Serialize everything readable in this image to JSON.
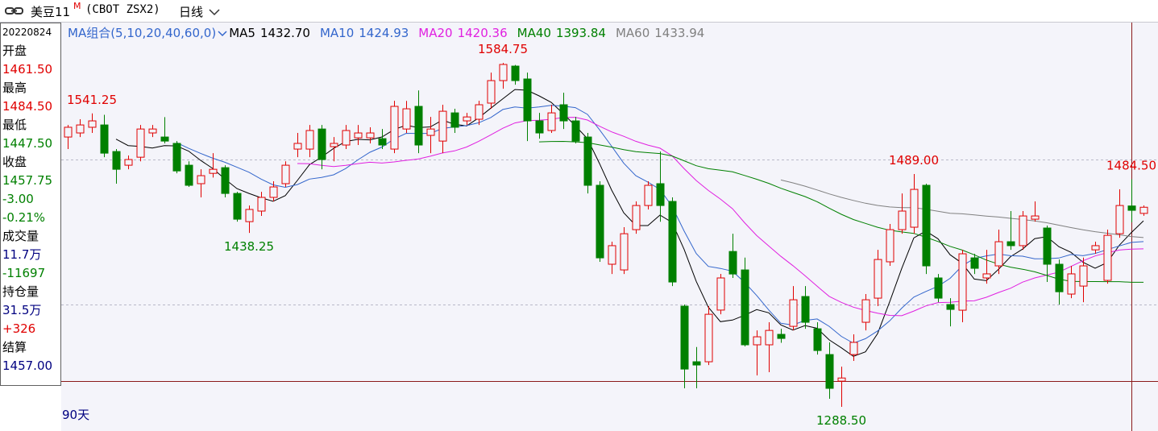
{
  "header": {
    "symbol": "美豆11",
    "superscript": "M",
    "code": "(CBOT ZSX2)",
    "period": "日线"
  },
  "info_panel": {
    "lines": [
      {
        "text": "20220824",
        "color": "#000000"
      },
      {
        "text": "开盘",
        "color": "#000000"
      },
      {
        "text": "1461.50",
        "color": "#e00000"
      },
      {
        "text": "最高",
        "color": "#000000"
      },
      {
        "text": "1484.50",
        "color": "#e00000"
      },
      {
        "text": "最低",
        "color": "#000000"
      },
      {
        "text": "1447.50",
        "color": "#008000"
      },
      {
        "text": "收盘",
        "color": "#000000"
      },
      {
        "text": "1457.75",
        "color": "#008000"
      },
      {
        "text": "-3.00",
        "color": "#008000"
      },
      {
        "text": "-0.21%",
        "color": "#008000"
      },
      {
        "text": "成交量",
        "color": "#000000"
      },
      {
        "text": "11.7万",
        "color": "#000080"
      },
      {
        "text": "-11697",
        "color": "#008000"
      },
      {
        "text": "持仓量",
        "color": "#000000"
      },
      {
        "text": "31.5万",
        "color": "#000080"
      },
      {
        "text": "+326",
        "color": "#e00000"
      },
      {
        "text": "结算",
        "color": "#000000"
      },
      {
        "text": "1457.00",
        "color": "#000080"
      }
    ]
  },
  "chart_data": {
    "type": "candlestick",
    "ma_legend": {
      "title": "MA组合(5,10,20,40,60,0)",
      "items": [
        {
          "name": "MA5",
          "value": "1432.70",
          "color": "#000000",
          "period": 5
        },
        {
          "name": "MA10",
          "value": "1424.93",
          "color": "#3366cc",
          "period": 10
        },
        {
          "name": "MA20",
          "value": "1420.36",
          "color": "#e020e0",
          "period": 20
        },
        {
          "name": "MA40",
          "value": "1393.84",
          "color": "#008000",
          "period": 40
        },
        {
          "name": "MA60",
          "value": "1433.94",
          "color": "#808080",
          "period": 60
        }
      ]
    },
    "up_color": "#e00000",
    "down_color": "#008000",
    "label_up_color": "#e00000",
    "label_down_color": "#008000",
    "range_label": "90天",
    "ylim": [
      1272.5,
      1619.5
    ],
    "open": [
      1520.9,
      1524.4,
      1529.3,
      1531.3,
      1508.4,
      1496.6,
      1503.5,
      1524.4,
      1520.9,
      1515.4,
      1496.6,
      1480.7,
      1489.6,
      1494.5,
      1472.3,
      1448,
      1457.1,
      1468.9,
      1480.7,
      1510.5,
      1510.5,
      1527.8,
      1512.6,
      1514,
      1520.2,
      1520.2,
      1519.5,
      1510.5,
      1527.8,
      1547.3,
      1522.3,
      1517.4,
      1541.7,
      1534.8,
      1536.2,
      1550.1,
      1569.5,
      1582,
      1570.9,
      1534.8,
      1526.5,
      1548.7,
      1534.8,
      1520.9,
      1479.3,
      1411.3,
      1406.4,
      1441.1,
      1461.9,
      1480.7,
      1465.4,
      1375.2,
      1327.3,
      1327.3,
      1371.8,
      1422.3,
      1406.4,
      1341.9,
      1341.9,
      1350.9,
      1357.8,
      1383.5,
      1355.7,
      1333.5,
      1310.6,
      1333.5,
      1361.3,
      1382.1,
      1413.4,
      1441.1,
      1443.2,
      1479.3,
      1399.5,
      1376.6,
      1371.7,
      1416.8,
      1399.5,
      1409.9,
      1430.7,
      1427.3,
      1450.1,
      1442.5,
      1411.3,
      1385.6,
      1392.5,
      1423.7,
      1397.4,
      1437.6,
      1461.5,
      1455.1
    ],
    "high": [
      1531.3,
      1536.2,
      1541.25,
      1540,
      1510.5,
      1505,
      1531.3,
      1531.3,
      1538,
      1517.4,
      1500,
      1493.1,
      1507,
      1496.6,
      1473.7,
      1461.9,
      1473.7,
      1482.8,
      1500,
      1524.4,
      1531.3,
      1531.3,
      1520.9,
      1531.3,
      1531.3,
      1529.3,
      1527.8,
      1552.1,
      1552,
      1561,
      1538.2,
      1548.7,
      1545.2,
      1541.7,
      1552.1,
      1576.4,
      1584.75,
      1583,
      1576.4,
      1541.7,
      1548.7,
      1559,
      1538.2,
      1524.4,
      1482.8,
      1430.7,
      1443.2,
      1465.4,
      1482.8,
      1508.4,
      1468.9,
      1376.6,
      1340,
      1375.2,
      1403,
      1437.6,
      1417,
      1354.3,
      1361.3,
      1355.7,
      1392.5,
      1392.5,
      1361.3,
      1344,
      1323.1,
      1350.9,
      1385.6,
      1423.7,
      1446,
      1472.3,
      1489,
      1480.7,
      1402.9,
      1382.1,
      1423.7,
      1420.3,
      1423.7,
      1441.1,
      1457.1,
      1457.1,
      1465.4,
      1444.6,
      1415.4,
      1409.9,
      1417,
      1430.7,
      1441.1,
      1475.8,
      1484.5,
      1462
    ],
    "low": [
      1510.5,
      1520.9,
      1524.4,
      1503.5,
      1480.7,
      1493.1,
      1500,
      1520.9,
      1515.4,
      1489.6,
      1477.9,
      1468.9,
      1486,
      1468.9,
      1448,
      1438.25,
      1452.9,
      1465.4,
      1477.9,
      1503.5,
      1503.5,
      1493.1,
      1500,
      1510.5,
      1514,
      1515.4,
      1510.5,
      1507,
      1524.4,
      1507,
      1507,
      1507,
      1524.4,
      1531.3,
      1531.3,
      1545.2,
      1562.5,
      1566,
      1517.4,
      1519.5,
      1524.4,
      1527.8,
      1515.4,
      1472.3,
      1413.4,
      1402.9,
      1402.9,
      1437.6,
      1458.5,
      1447.9,
      1392.5,
      1304.4,
      1304.4,
      1324.5,
      1368.2,
      1399.5,
      1340.5,
      1315.5,
      1318.3,
      1343.6,
      1354.3,
      1355.7,
      1333.5,
      1295.4,
      1288.5,
      1328,
      1354.3,
      1375.2,
      1409.9,
      1437.6,
      1437.6,
      1402.9,
      1378.6,
      1357.8,
      1361.3,
      1402.9,
      1394.6,
      1402.9,
      1423.7,
      1423.7,
      1448,
      1396,
      1376.6,
      1382.1,
      1378.6,
      1420.3,
      1394.6,
      1434.1,
      1447.5,
      1453
    ],
    "close": [
      1529.3,
      1531.3,
      1534.8,
      1507,
      1493.1,
      1501.5,
      1527.8,
      1527.8,
      1517.4,
      1491.7,
      1479.3,
      1487.6,
      1493.1,
      1472.3,
      1450.1,
      1458.5,
      1468.9,
      1477.9,
      1496.6,
      1515.4,
      1526.5,
      1501.5,
      1515.4,
      1526.5,
      1524.4,
      1524.4,
      1514,
      1547.3,
      1545.2,
      1514,
      1527.8,
      1543.1,
      1529.3,
      1538.2,
      1548.7,
      1569.5,
      1583.4,
      1569.5,
      1534.8,
      1524.4,
      1541.7,
      1534.8,
      1517.4,
      1479.3,
      1416.8,
      1427.3,
      1437.6,
      1461.9,
      1479.3,
      1461.9,
      1396,
      1321,
      1324.5,
      1368.2,
      1399.5,
      1402.9,
      1341.9,
      1348.8,
      1354.3,
      1347.4,
      1380.7,
      1361.3,
      1337,
      1304.4,
      1313.3,
      1344,
      1380.7,
      1415.4,
      1441.1,
      1457.1,
      1475.8,
      1409.9,
      1382.1,
      1372.4,
      1420.3,
      1407.8,
      1403,
      1430.7,
      1427.3,
      1452.9,
      1452.9,
      1411.3,
      1387.6,
      1403,
      1409.9,
      1427.3,
      1436.2,
      1461.9,
      1457.75,
      1460.4
    ],
    "high_labels": [
      null,
      null,
      "1541.25",
      null,
      null,
      null,
      null,
      null,
      null,
      null,
      null,
      null,
      null,
      null,
      null,
      null,
      null,
      null,
      null,
      null,
      null,
      null,
      null,
      null,
      null,
      null,
      null,
      null,
      null,
      null,
      null,
      null,
      null,
      null,
      null,
      null,
      "1584.75",
      null,
      null,
      null,
      null,
      null,
      null,
      null,
      null,
      null,
      null,
      null,
      null,
      null,
      null,
      null,
      null,
      null,
      null,
      null,
      null,
      null,
      null,
      null,
      null,
      null,
      null,
      null,
      null,
      null,
      null,
      null,
      null,
      null,
      "1489.00",
      null,
      null,
      null,
      null,
      null,
      null,
      null,
      null,
      null,
      null,
      null,
      null,
      null,
      null,
      null,
      null,
      null,
      "1484.50",
      null
    ],
    "low_labels": [
      null,
      null,
      null,
      null,
      null,
      null,
      null,
      null,
      null,
      null,
      null,
      null,
      null,
      null,
      null,
      "1438.25",
      null,
      null,
      null,
      null,
      null,
      null,
      null,
      null,
      null,
      null,
      null,
      null,
      null,
      null,
      null,
      null,
      null,
      null,
      null,
      null,
      null,
      null,
      null,
      null,
      null,
      null,
      null,
      null,
      null,
      null,
      null,
      null,
      null,
      null,
      null,
      null,
      null,
      null,
      null,
      null,
      null,
      null,
      null,
      null,
      null,
      null,
      null,
      null,
      "1288.50",
      null,
      null,
      null,
      null,
      null,
      null,
      null,
      null,
      null,
      null,
      null,
      null,
      null,
      null,
      null,
      null,
      null,
      null,
      null,
      null,
      null,
      null,
      null,
      null,
      null
    ]
  }
}
